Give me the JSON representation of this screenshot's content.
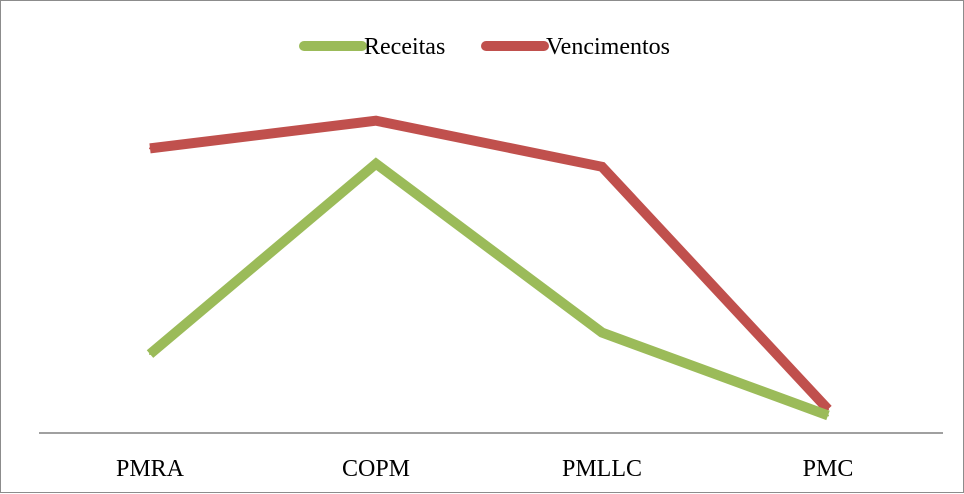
{
  "chart_data": {
    "type": "line",
    "title": "",
    "xlabel": "",
    "ylabel": "",
    "categories": [
      "PMRA",
      "COPM",
      "PMLLC",
      "PMC"
    ],
    "ylim": [
      0,
      100
    ],
    "grid": false,
    "legend_position": "top-center",
    "series": [
      {
        "name": "Receitas",
        "color": "#9BBB59",
        "values": [
          28,
          90,
          35,
          8
        ]
      },
      {
        "name": "Vencimentos",
        "color": "#C0504D",
        "values": [
          95,
          104,
          89,
          10
        ]
      }
    ]
  }
}
